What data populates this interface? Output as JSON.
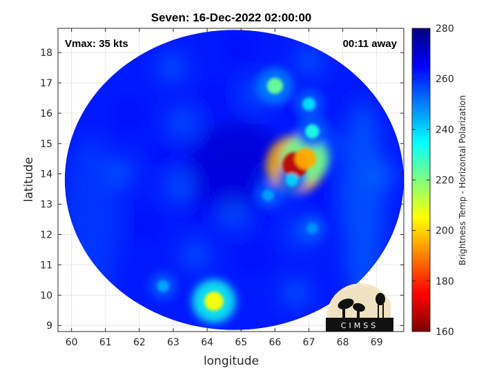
{
  "chart_data": {
    "type": "heatmap",
    "title": "Seven: 16-Dec-2022 02:00:00",
    "xlabel": "longitude",
    "ylabel": "latitude",
    "xlim": [
      59.6,
      69.8
    ],
    "ylim": [
      8.8,
      18.8
    ],
    "xticks": [
      60,
      61,
      62,
      63,
      64,
      65,
      66,
      67,
      68,
      69
    ],
    "yticks": [
      9,
      10,
      11,
      12,
      13,
      14,
      15,
      16,
      17,
      18
    ],
    "grid": true,
    "colorbar": {
      "label": "Brightness Temp - Horizontal Polarization",
      "range": [
        160,
        280
      ],
      "ticks": [
        160,
        180,
        200,
        220,
        240,
        260,
        280
      ],
      "colormap": "jet"
    },
    "annotations": {
      "vmax": "Vmax: 35 kts",
      "time_offset": "00:11 away"
    },
    "features": [
      {
        "lon": 66.6,
        "lat": 14.3,
        "value": 168
      },
      {
        "lon": 66.9,
        "lat": 14.5,
        "value": 195
      },
      {
        "lon": 67.1,
        "lat": 15.4,
        "value": 232
      },
      {
        "lon": 67.0,
        "lat": 16.3,
        "value": 238
      },
      {
        "lon": 66.0,
        "lat": 16.9,
        "value": 222
      },
      {
        "lon": 64.2,
        "lat": 9.8,
        "value": 205
      },
      {
        "lon": 62.7,
        "lat": 10.3,
        "value": 245
      },
      {
        "lon": 67.1,
        "lat": 12.2,
        "value": 248
      },
      {
        "lon": 65.8,
        "lat": 13.3,
        "value": 246
      },
      {
        "lon": 66.5,
        "lat": 13.8,
        "value": 240
      }
    ],
    "swath": {
      "center": [
        64.8,
        13.8
      ],
      "radius_lon": 5.0,
      "radius_lat": 4.95,
      "eye": [
        64.9,
        14.3
      ],
      "background_value": 262
    }
  },
  "logo": {
    "text": "CIMSS"
  },
  "colors": {
    "background": "#ffffff",
    "axis": "#262626",
    "grid": "#e5e5e5"
  }
}
